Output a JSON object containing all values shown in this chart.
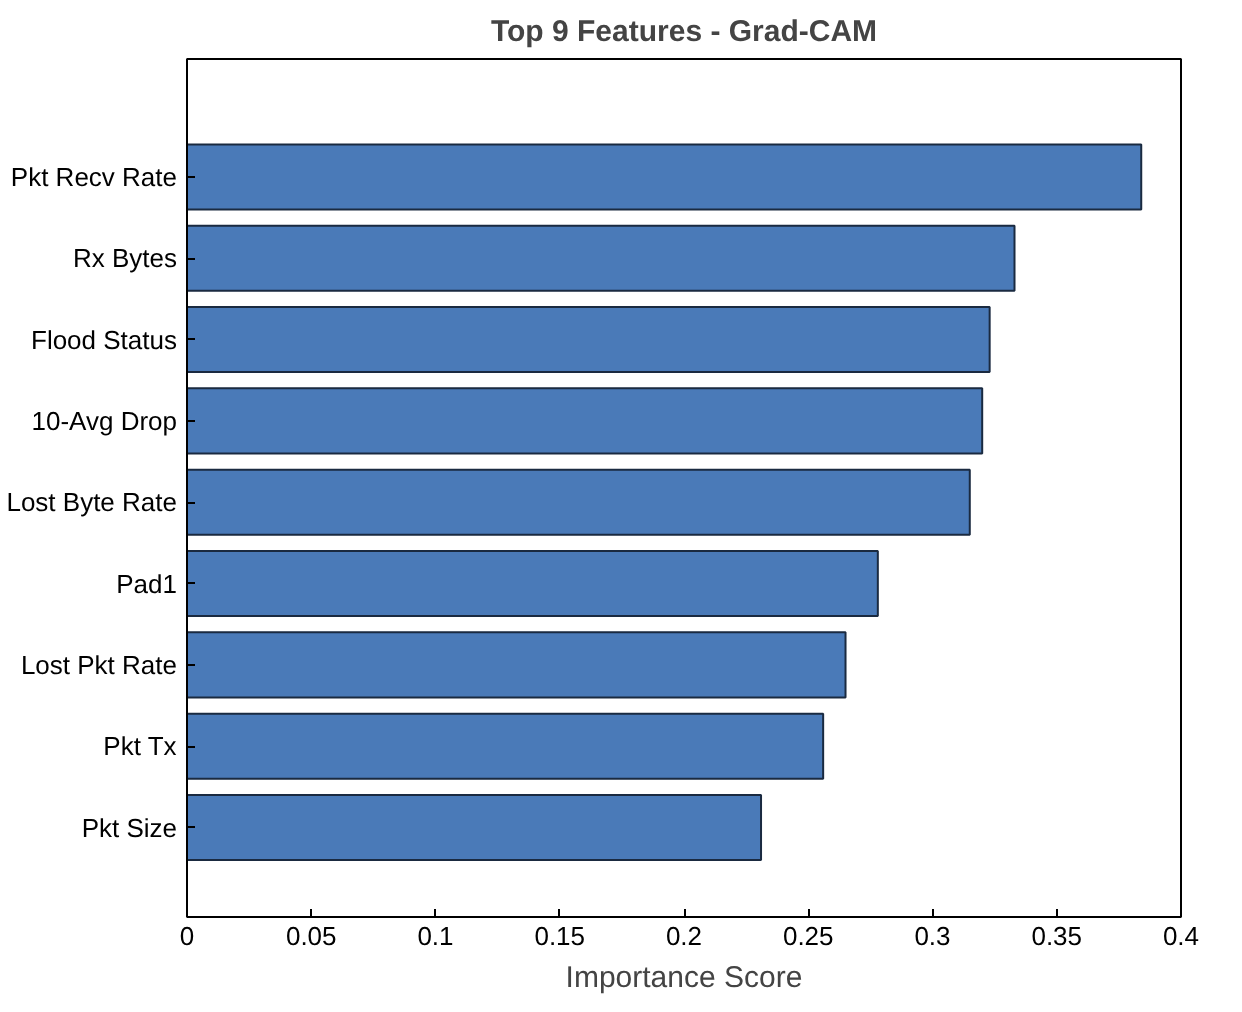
{
  "chart_data": {
    "type": "bar",
    "orientation": "horizontal",
    "title": "Top 9 Features - Grad-CAM",
    "xlabel": "Importance Score",
    "categories": [
      "Pkt Recv Rate",
      "Rx Bytes",
      "Flood Status",
      "10-Avg Drop",
      "Lost Byte Rate",
      "Pad1",
      "Lost Pkt Rate",
      "Pkt Tx",
      "Pkt Size"
    ],
    "values": [
      0.384,
      0.333,
      0.323,
      0.32,
      0.315,
      0.278,
      0.265,
      0.256,
      0.231
    ],
    "color": "#4a7ab8",
    "xlim": [
      0,
      0.4
    ],
    "xticks": [
      0,
      0.05,
      0.1,
      0.15,
      0.2,
      0.25,
      0.3,
      0.35,
      0.4
    ],
    "grid": false
  }
}
